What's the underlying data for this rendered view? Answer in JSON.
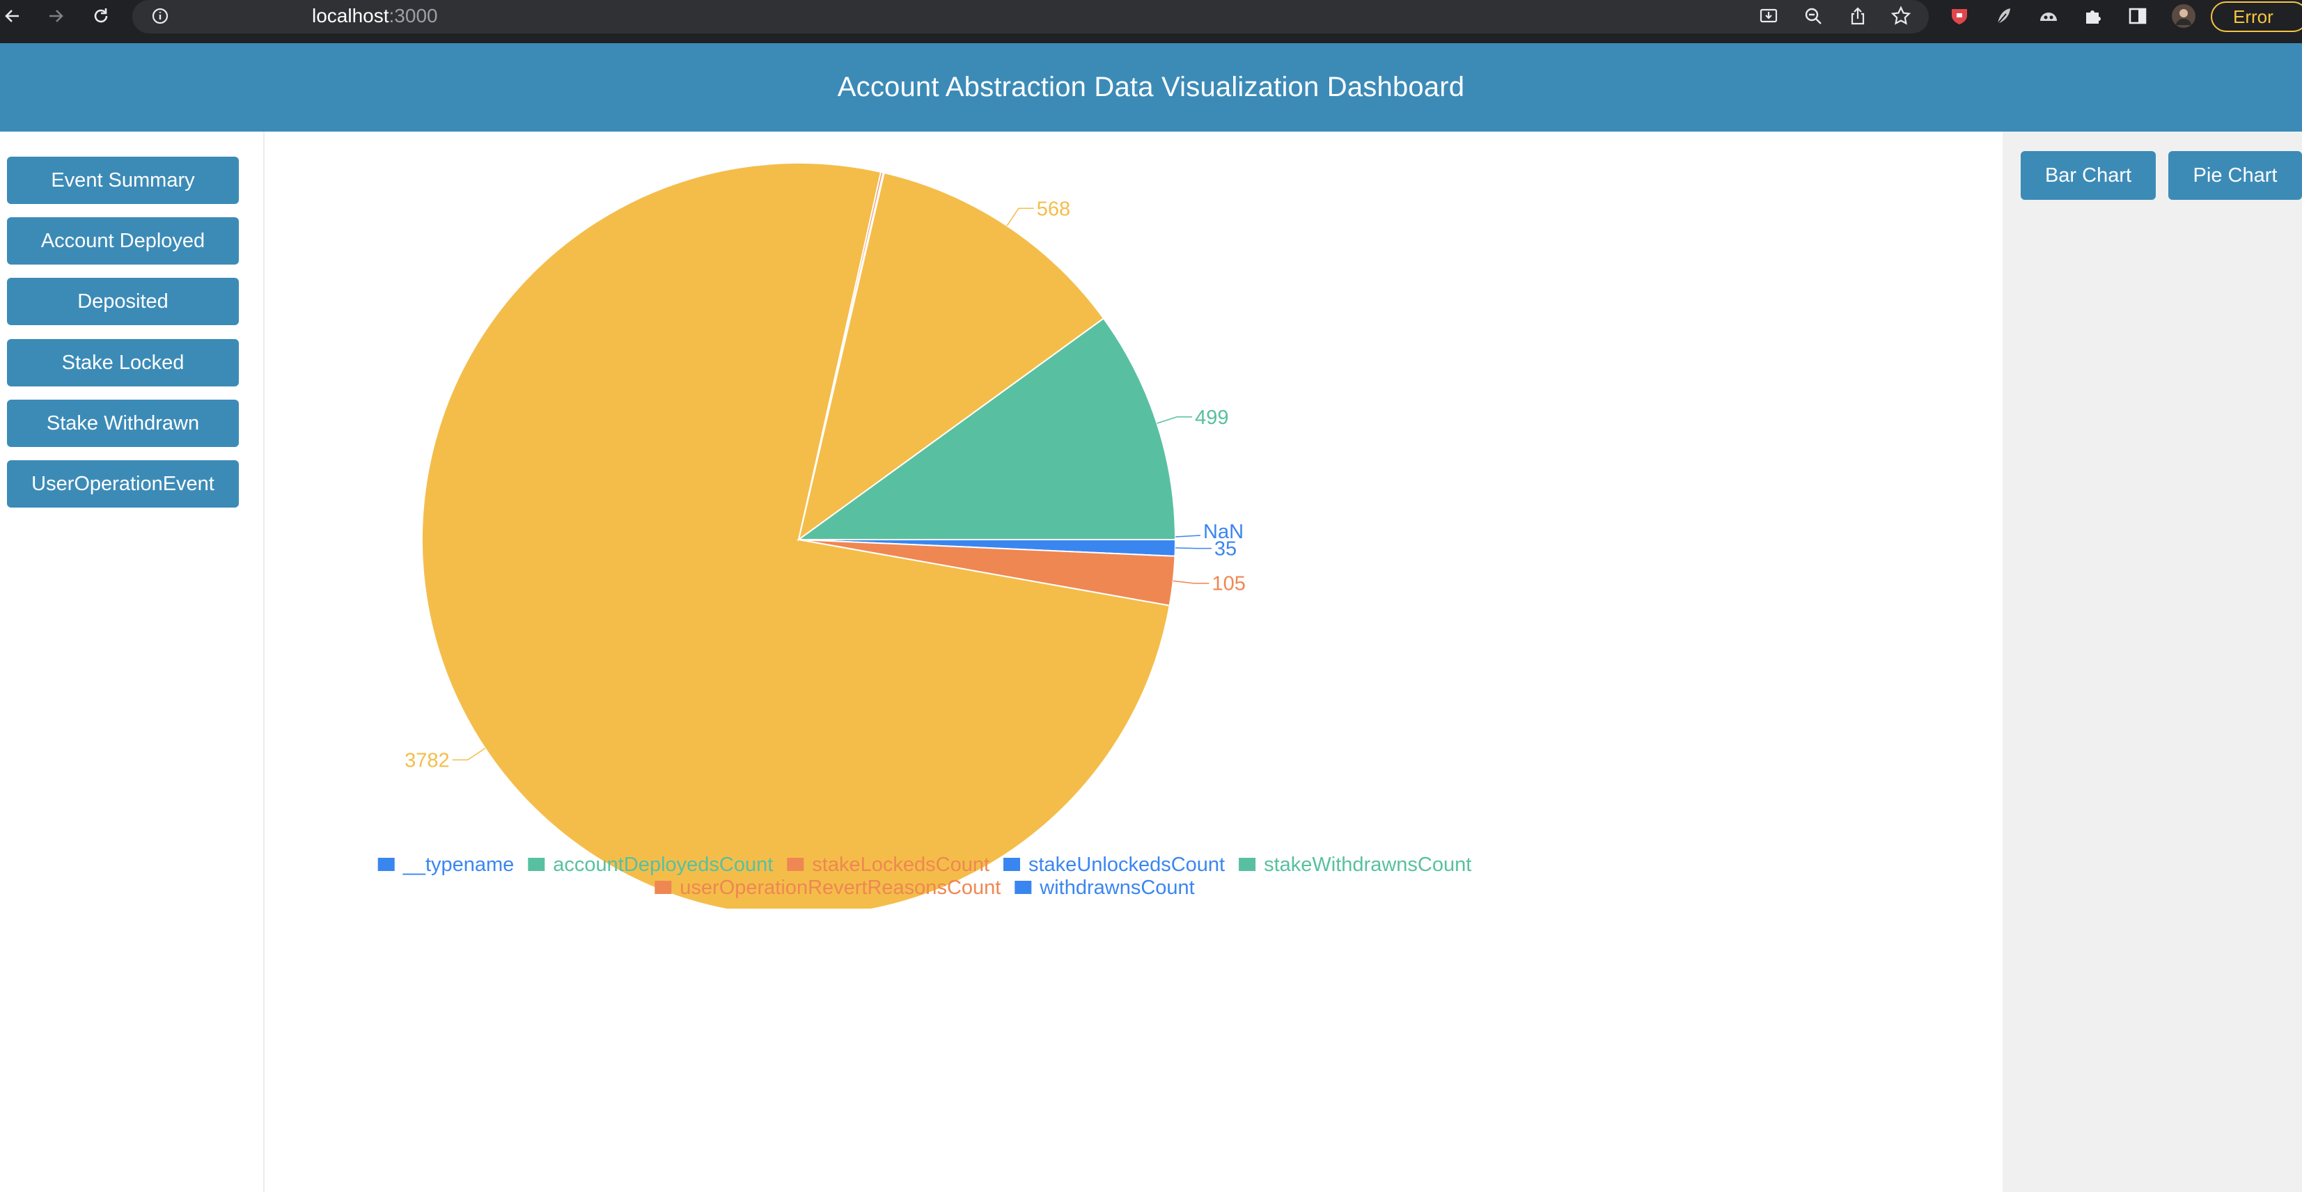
{
  "browser": {
    "address_host": "localhost",
    "address_port": ":3000",
    "error_label": "Error",
    "icons": [
      "back-arrow-icon",
      "forward-arrow-icon",
      "reload-icon",
      "info-icon",
      "install-icon",
      "zoom-icon",
      "share-icon",
      "star-icon",
      "extension-icon",
      "puzzle-icon",
      "sidebar-icon",
      "profile-avatar",
      "more-icon"
    ]
  },
  "header": {
    "title": "Account Abstraction Data Visualization Dashboard"
  },
  "sidebar": {
    "items": [
      {
        "label": "Event Summary"
      },
      {
        "label": "Account Deployed"
      },
      {
        "label": "Deposited"
      },
      {
        "label": "Stake Locked"
      },
      {
        "label": "Stake Withdrawn"
      },
      {
        "label": "UserOperationEvent"
      }
    ]
  },
  "chart_toggle": {
    "bar_label": "Bar Chart",
    "pie_label": "Pie Chart"
  },
  "colors": {
    "header_bg": "#3c8bb7",
    "button_bg": "#3c8bb7",
    "right_panel_bg": "#f0f0f0",
    "slice_yellow": "#f4bd4a",
    "slice_green": "#58c0a0",
    "slice_blue": "#3a86f0",
    "slice_orange": "#ef8752"
  },
  "chart_data": {
    "type": "pie",
    "title": "",
    "slices": [
      {
        "label": "",
        "value": 35,
        "display": "35",
        "color": "#3a86f0"
      },
      {
        "label": "",
        "value": 105,
        "display": "105",
        "color": "#ef8752"
      },
      {
        "label": "",
        "value": 3782,
        "display": "3782",
        "color": "#f4bd4a"
      },
      {
        "label": "",
        "value": 5,
        "display": "",
        "color": "#ef8752"
      },
      {
        "label": "",
        "value": 2,
        "display": "",
        "color": "#58c0a0"
      },
      {
        "label": "",
        "value": 568,
        "display": "568",
        "color": "#f4bd4a"
      },
      {
        "label": "",
        "value": 499,
        "display": "499",
        "color": "#58c0a0"
      }
    ],
    "nan_label": "NaN",
    "legend_placement": "bottom",
    "legend": [
      {
        "label": "__typename",
        "color": "#3a86f0"
      },
      {
        "label": "accountDeployedsCount",
        "color": "#58c0a0"
      },
      {
        "label": "stakeLockedsCount",
        "color": "#ef8752"
      },
      {
        "label": "stakeUnlockedsCount",
        "color": "#3a86f0"
      },
      {
        "label": "stakeWithdrawnsCount",
        "color": "#58c0a0"
      },
      {
        "label": "userOperationRevertReasonsCount",
        "color": "#ef8752"
      },
      {
        "label": "withdrawnsCount",
        "color": "#3a86f0"
      }
    ],
    "legend_rows": [
      [
        0,
        1,
        2,
        3,
        4
      ],
      [
        5,
        6
      ]
    ]
  }
}
